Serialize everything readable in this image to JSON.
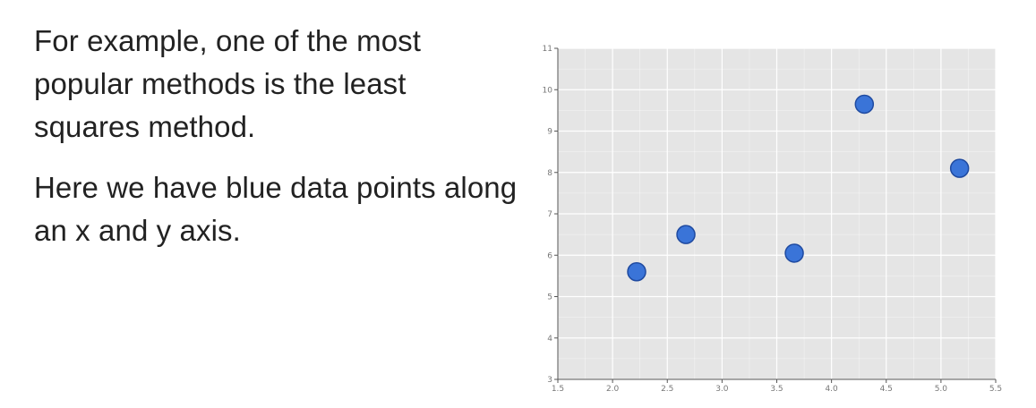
{
  "text": {
    "paragraph_1": "For example, one of the most popular methods is the least squares method.",
    "paragraph_2": "Here we have blue data points along an x and y axis."
  },
  "colors": {
    "plot_background": "#e5e5e5",
    "grid_line": "#ffffff",
    "point_fill": "#3a74d8",
    "point_stroke": "#1f4aa0",
    "tick_text": "#777777"
  },
  "chart_data": {
    "type": "scatter",
    "title": "",
    "xlabel": "",
    "ylabel": "",
    "xlim": [
      1.5,
      5.5
    ],
    "ylim": [
      3,
      11
    ],
    "x_ticks": [
      "1.5",
      "2.0",
      "2.5",
      "3.0",
      "3.5",
      "4.0",
      "4.5",
      "5.0",
      "5.5"
    ],
    "y_ticks": [
      "3",
      "4",
      "5",
      "6",
      "7",
      "8",
      "9",
      "10",
      "11"
    ],
    "grid": true,
    "points": [
      {
        "x": 2.22,
        "y": 5.6
      },
      {
        "x": 2.67,
        "y": 6.5
      },
      {
        "x": 3.66,
        "y": 6.05
      },
      {
        "x": 4.3,
        "y": 9.65
      },
      {
        "x": 5.17,
        "y": 8.1
      }
    ]
  }
}
